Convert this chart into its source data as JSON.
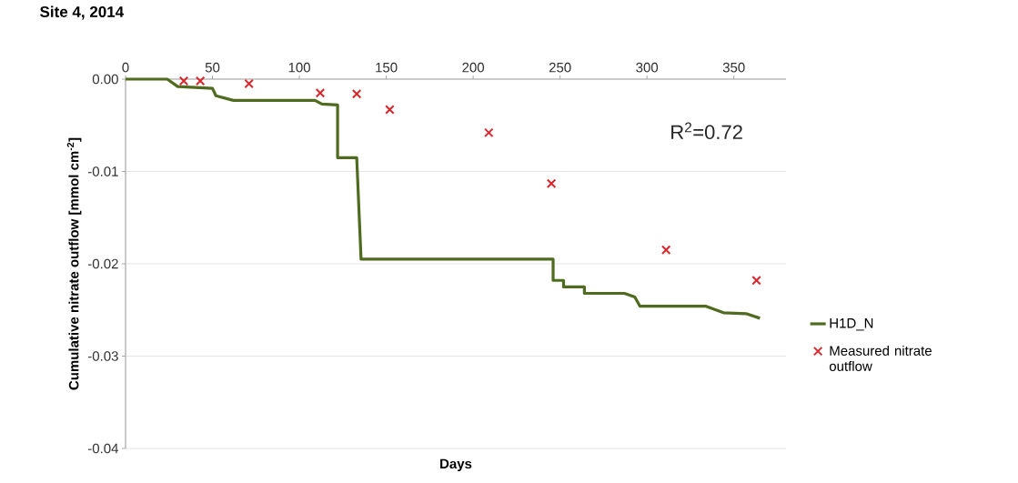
{
  "chart_data": {
    "type": "line",
    "title": "Site 4, 2014",
    "xlabel": "Days",
    "ylabel": "Cumulative nitrate outflow [mmol cm$^{-2}$]",
    "annotations": [
      "R$^{2}$=0.72"
    ],
    "xlim": [
      0,
      380
    ],
    "ylim": [
      -0.04,
      0
    ],
    "xticks": [
      0,
      50,
      100,
      150,
      200,
      250,
      300,
      350
    ],
    "yticks": [
      {
        "value": 0,
        "label": "0.00"
      },
      -0.01,
      -0.02,
      -0.03,
      -0.04
    ],
    "grid": "y",
    "legend": "right",
    "series": [
      {
        "name": "H1D_N",
        "color": "#4f6b1f",
        "marker": "none",
        "line_style": "solid",
        "x": [
          0,
          24,
          30,
          50,
          52,
          62,
          109,
          113,
          122,
          122,
          133,
          135.5,
          246,
          246,
          252,
          252,
          264,
          264,
          287,
          293,
          296,
          334,
          344,
          357,
          365
        ],
        "values": [
          0,
          0,
          -0.0008,
          -0.001,
          -0.0018,
          -0.0023,
          -0.0023,
          -0.0027,
          -0.0028,
          -0.0085,
          -0.0085,
          -0.0195,
          -0.0195,
          -0.0218,
          -0.0218,
          -0.0225,
          -0.0225,
          -0.0232,
          -0.0232,
          -0.0236,
          -0.0246,
          -0.0246,
          -0.0253,
          -0.0254,
          -0.0259
        ]
      },
      {
        "name": "Measured nitrate outflow",
        "type": "scatter",
        "color": "#d9262c",
        "marker": "cross",
        "x": [
          33.5,
          43,
          71,
          112,
          133,
          152,
          209,
          245,
          311,
          363
        ],
        "values": [
          -0.0002,
          -0.0002,
          -0.0005,
          -0.0015,
          -0.0016,
          -0.0033,
          -0.0058,
          -0.0113,
          -0.0185,
          -0.0218
        ]
      }
    ]
  }
}
